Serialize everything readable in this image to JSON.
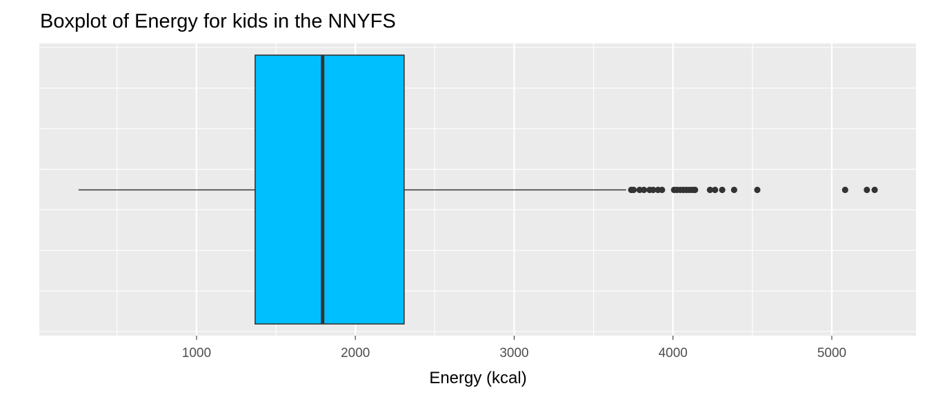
{
  "chart_data": {
    "type": "boxplot",
    "title": "Boxplot of Energy for kids in the NNYFS",
    "xlabel": "Energy (kcal)",
    "ylabel": "",
    "orientation": "horizontal",
    "xlim": [
      10,
      5530
    ],
    "x_ticks": [
      1000,
      2000,
      3000,
      4000,
      5000
    ],
    "x_tick_labels": [
      "1000",
      "2000",
      "3000",
      "4000",
      "5000"
    ],
    "x_minor_ticks": [
      500,
      1500,
      2500,
      3500,
      4500
    ],
    "y_gridline_count": 8,
    "grid": true,
    "box": {
      "whisker_low": 257,
      "q1": 1369,
      "median": 1794,
      "q3": 2307,
      "whisker_high": 3705
    },
    "outliers": [
      3737,
      3752,
      3790,
      3817,
      3853,
      3875,
      3906,
      3931,
      4007,
      4025,
      4046,
      4066,
      4085,
      4104,
      4123,
      4139,
      4233,
      4265,
      4310,
      4385,
      4531,
      5084,
      5221,
      5270
    ],
    "colors": {
      "panel_background": "#ebebeb",
      "grid_major": "#ffffff",
      "box_fill": "#00bfff",
      "box_outline": "#333333",
      "median_line": "#333333",
      "whisker": "#333333",
      "outlier": "#333333"
    }
  }
}
